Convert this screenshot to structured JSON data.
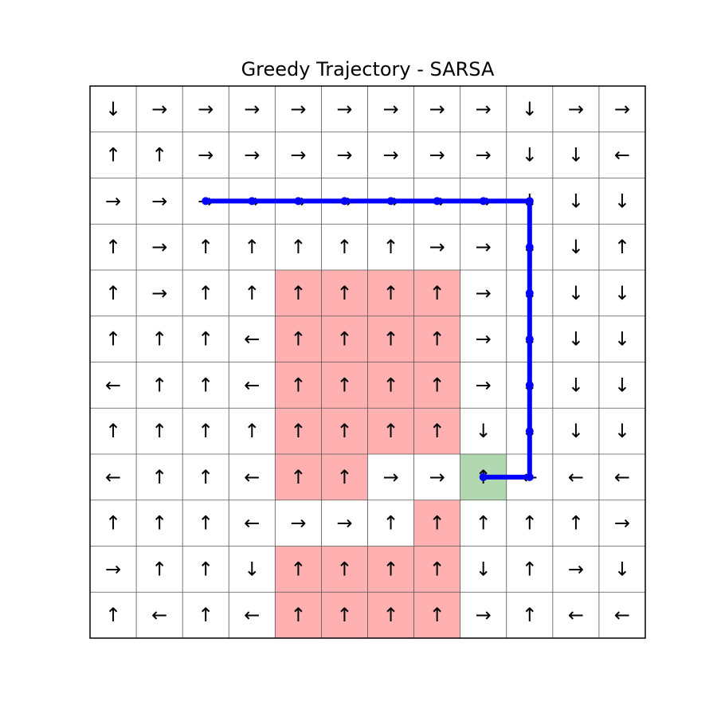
{
  "title": "Greedy Trajectory - SARSA",
  "grid": {
    "rows": 12,
    "cols": 12,
    "arrows": [
      [
        "↓",
        "→",
        "→",
        "→",
        "→",
        "→",
        "→",
        "→",
        "→",
        "↓",
        "→",
        "→"
      ],
      [
        "↑",
        "↑",
        "→",
        "→",
        "→",
        "→",
        "→",
        "→",
        "→",
        "↓",
        "↓",
        "←"
      ],
      [
        "→",
        "→",
        "→",
        "→",
        "→",
        "→",
        "→",
        "→",
        "→",
        "↓",
        "↓",
        "↓"
      ],
      [
        "↑",
        "→",
        "↑",
        "↑",
        "↑",
        "↑",
        "↑",
        "→",
        "→",
        "↓",
        "↓",
        "↑"
      ],
      [
        "↑",
        "→",
        "↑",
        "↑",
        "↑",
        "↑",
        "↑",
        "↑",
        "→",
        "↓",
        "↓",
        "↓"
      ],
      [
        "↑",
        "↑",
        "↑",
        "←",
        "↑",
        "↑",
        "↑",
        "↑",
        "→",
        "↓",
        "↓",
        "↓"
      ],
      [
        "←",
        "↑",
        "↑",
        "←",
        "↑",
        "↑",
        "↑",
        "↑",
        "→",
        "↓",
        "↓",
        "↓"
      ],
      [
        "↑",
        "↑",
        "↑",
        "↑",
        "↑",
        "↑",
        "↑",
        "↑",
        "↓",
        "↓",
        "↓",
        "↓"
      ],
      [
        "←",
        "↑",
        "↑",
        "←",
        "↑",
        "↑",
        "→",
        "→",
        "↑",
        "←",
        "←",
        "←"
      ],
      [
        "↑",
        "↑",
        "↑",
        "←",
        "→",
        "→",
        "↑",
        "↑",
        "↑",
        "↑",
        "↑",
        "→"
      ],
      [
        "→",
        "↑",
        "↑",
        "↓",
        "↑",
        "↑",
        "↑",
        "↑",
        "↓",
        "↑",
        "→",
        "↓"
      ],
      [
        "↑",
        "←",
        "↑",
        "←",
        "↑",
        "↑",
        "↑",
        "↑",
        "→",
        "↑",
        "←",
        "←"
      ]
    ],
    "cliff_cells": [
      [
        4,
        4
      ],
      [
        4,
        5
      ],
      [
        4,
        6
      ],
      [
        4,
        7
      ],
      [
        5,
        4
      ],
      [
        5,
        5
      ],
      [
        5,
        6
      ],
      [
        5,
        7
      ],
      [
        6,
        4
      ],
      [
        6,
        5
      ],
      [
        6,
        6
      ],
      [
        6,
        7
      ],
      [
        7,
        4
      ],
      [
        7,
        5
      ],
      [
        7,
        6
      ],
      [
        7,
        7
      ],
      [
        8,
        4
      ],
      [
        8,
        5
      ],
      [
        9,
        7
      ],
      [
        10,
        4
      ],
      [
        10,
        5
      ],
      [
        10,
        6
      ],
      [
        10,
        7
      ],
      [
        11,
        4
      ],
      [
        11,
        5
      ],
      [
        11,
        6
      ],
      [
        11,
        7
      ]
    ],
    "goal_cell": [
      8,
      8
    ],
    "colors": {
      "cliff": "#ffb0b0",
      "goal": "#b2d8b2",
      "path": "#0000ff",
      "grid_line": "#555555",
      "border": "#000000"
    }
  },
  "trajectory": [
    [
      2,
      2
    ],
    [
      2,
      3
    ],
    [
      2,
      4
    ],
    [
      2,
      5
    ],
    [
      2,
      6
    ],
    [
      2,
      7
    ],
    [
      2,
      8
    ],
    [
      2,
      9
    ],
    [
      3,
      9
    ],
    [
      4,
      9
    ],
    [
      5,
      9
    ],
    [
      6,
      9
    ],
    [
      7,
      9
    ],
    [
      8,
      9
    ],
    [
      8,
      8
    ]
  ]
}
